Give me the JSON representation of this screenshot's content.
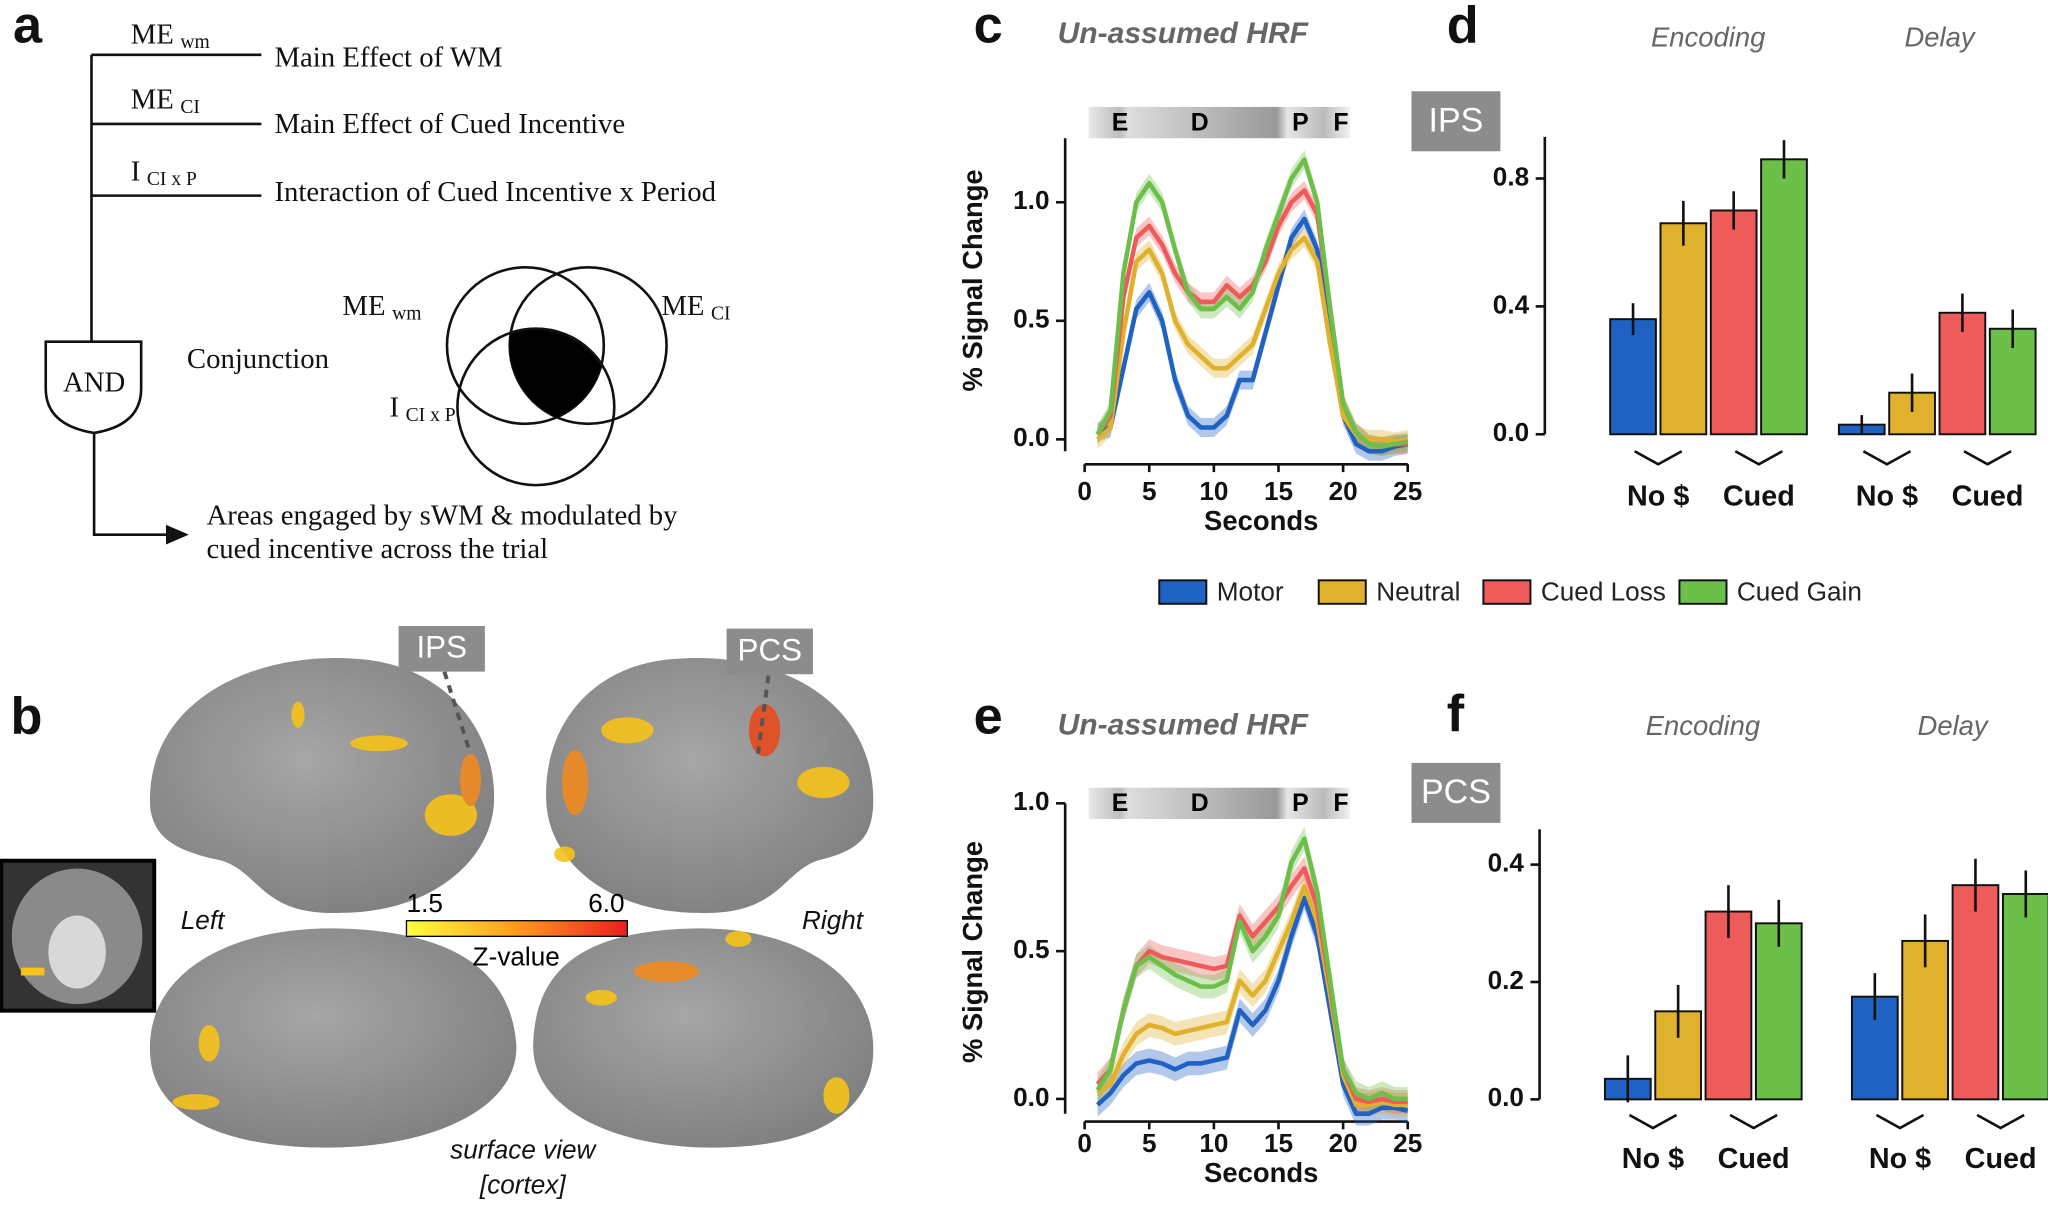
{
  "panel_a": {
    "letter": "a",
    "terms": [
      {
        "main": "ME",
        "sub": "wm",
        "label": "Main Effect of WM"
      },
      {
        "main": "ME",
        "sub": "CI",
        "label": "Main Effect of Cued Incentive"
      },
      {
        "main": "I",
        "sub": "CI x P",
        "label": "Interaction of Cued Incentive x Period"
      }
    ],
    "gate": "AND",
    "conjunction": "Conjunction",
    "result": [
      "Areas engaged by sWM & modulated by",
      "cued incentive across the trial"
    ]
  },
  "panel_b": {
    "letter": "b",
    "regions": [
      "IPS",
      "PCS"
    ],
    "hemispheres": [
      "Left",
      "Right"
    ],
    "colorbar": {
      "ticks": [
        1.5,
        {
          "value": 6,
          "label": "6.0"
        }
      ],
      "label": "Z-value"
    },
    "caption": [
      "surface view",
      "[cortex]"
    ]
  },
  "chart_data": [
    {
      "type": "line",
      "panel": "c",
      "title": "Un-assumed HRF",
      "region": "IPS",
      "periods": [
        "E",
        "D",
        "P",
        "F"
      ],
      "xlabel": "Seconds",
      "ylabel": "% Signal Change",
      "x": [
        1,
        2,
        3,
        4,
        5,
        6,
        7,
        8,
        9,
        10,
        11,
        12,
        13,
        14,
        15,
        16,
        17,
        18,
        19,
        20,
        21,
        22,
        23,
        24,
        25
      ],
      "xlim": [
        -1,
        26
      ],
      "xticks": [
        0,
        5,
        10,
        15,
        20,
        25
      ],
      "ylim": [
        -0.05,
        1.27
      ],
      "yticks": [
        {
          "value": 0,
          "label": "0.0"
        },
        0.5,
        {
          "value": 1,
          "label": "1.0"
        }
      ],
      "series": [
        {
          "name": "Motor",
          "color": "#1f62c4",
          "error": 0.04,
          "values": [
            0.03,
            0.05,
            0.3,
            0.55,
            0.62,
            0.5,
            0.25,
            0.1,
            0.05,
            0.05,
            0.1,
            0.25,
            0.25,
            0.45,
            0.65,
            0.85,
            0.93,
            0.8,
            0.45,
            0.1,
            -0.02,
            -0.05,
            -0.05,
            -0.03,
            -0.02
          ]
        },
        {
          "name": "Neutral",
          "color": "#e0b12c",
          "error": 0.04,
          "values": [
            0.0,
            0.05,
            0.45,
            0.75,
            0.8,
            0.7,
            0.5,
            0.4,
            0.35,
            0.3,
            0.3,
            0.35,
            0.4,
            0.55,
            0.7,
            0.8,
            0.85,
            0.75,
            0.4,
            0.1,
            0.02,
            0.0,
            0.0,
            -0.01,
            0.0
          ]
        },
        {
          "name": "Cued Loss",
          "color": "#ee5b5b",
          "error": 0.04,
          "values": [
            0.02,
            0.1,
            0.6,
            0.85,
            0.9,
            0.82,
            0.7,
            0.62,
            0.58,
            0.58,
            0.65,
            0.6,
            0.65,
            0.75,
            0.9,
            1.0,
            1.05,
            0.95,
            0.55,
            0.15,
            0.03,
            -0.02,
            -0.03,
            -0.02,
            -0.02
          ]
        },
        {
          "name": "Cued Gain",
          "color": "#6cc04a",
          "error": 0.04,
          "values": [
            0.02,
            0.12,
            0.7,
            1.0,
            1.08,
            1.0,
            0.8,
            0.62,
            0.55,
            0.55,
            0.6,
            0.55,
            0.62,
            0.8,
            0.95,
            1.1,
            1.18,
            1.0,
            0.55,
            0.15,
            0.03,
            -0.02,
            -0.03,
            -0.02,
            -0.01
          ]
        }
      ]
    },
    {
      "type": "bar",
      "panel": "d",
      "categories": [
        "Encoding",
        "Delay"
      ],
      "subgroups": [
        "No $",
        "Cued"
      ],
      "ylim": [
        0,
        0.93
      ],
      "yticks": [
        {
          "value": 0,
          "label": "0.0"
        },
        0.4,
        0.8
      ],
      "series": [
        {
          "name": "Motor",
          "color": "#1f62c4",
          "values": [
            0.36,
            0.03
          ],
          "errors": [
            0.05,
            0.03
          ]
        },
        {
          "name": "Neutral",
          "color": "#e0b12c",
          "values": [
            0.66,
            0.13
          ],
          "errors": [
            0.07,
            0.06
          ]
        },
        {
          "name": "Cued Loss",
          "color": "#ee5b5b",
          "values": [
            0.7,
            0.38
          ],
          "errors": [
            0.06,
            0.06
          ]
        },
        {
          "name": "Cued Gain",
          "color": "#6cc04a",
          "values": [
            0.86,
            0.33
          ],
          "errors": [
            0.06,
            0.06
          ]
        }
      ]
    },
    {
      "type": "line",
      "panel": "e",
      "title": "Un-assumed HRF",
      "region": "PCS",
      "periods": [
        "E",
        "D",
        "P",
        "F"
      ],
      "xlabel": "Seconds",
      "ylabel": "% Signal Change",
      "x": [
        1,
        2,
        3,
        4,
        5,
        6,
        7,
        8,
        9,
        10,
        11,
        12,
        13,
        14,
        15,
        16,
        17,
        18,
        19,
        20,
        21,
        22,
        23,
        24,
        25
      ],
      "xlim": [
        -1,
        26
      ],
      "xticks": [
        0,
        5,
        10,
        15,
        20,
        25
      ],
      "ylim": [
        -0.05,
        1.0
      ],
      "yticks": [
        {
          "value": 0,
          "label": "0.0"
        },
        0.5,
        {
          "value": 1,
          "label": "1.0"
        }
      ],
      "series": [
        {
          "name": "Motor",
          "color": "#1f62c4",
          "error": 0.04,
          "values": [
            -0.02,
            0.02,
            0.08,
            0.12,
            0.13,
            0.12,
            0.1,
            0.12,
            0.12,
            0.13,
            0.14,
            0.3,
            0.25,
            0.3,
            0.4,
            0.55,
            0.68,
            0.55,
            0.3,
            0.05,
            -0.05,
            -0.05,
            -0.03,
            -0.03,
            -0.04
          ]
        },
        {
          "name": "Neutral",
          "color": "#e0b12c",
          "error": 0.04,
          "values": [
            0.02,
            0.05,
            0.15,
            0.22,
            0.25,
            0.24,
            0.22,
            0.23,
            0.24,
            0.25,
            0.26,
            0.4,
            0.35,
            0.4,
            0.5,
            0.6,
            0.72,
            0.6,
            0.35,
            0.08,
            -0.02,
            -0.02,
            -0.01,
            -0.02,
            -0.02
          ]
        },
        {
          "name": "Cued Loss",
          "color": "#ee5b5b",
          "error": 0.04,
          "values": [
            0.05,
            0.1,
            0.3,
            0.45,
            0.5,
            0.48,
            0.47,
            0.46,
            0.45,
            0.44,
            0.45,
            0.62,
            0.55,
            0.6,
            0.65,
            0.72,
            0.78,
            0.65,
            0.38,
            0.1,
            0.0,
            -0.01,
            0.0,
            -0.01,
            -0.01
          ]
        },
        {
          "name": "Cued Gain",
          "color": "#6cc04a",
          "error": 0.04,
          "values": [
            0.03,
            0.1,
            0.3,
            0.45,
            0.48,
            0.45,
            0.42,
            0.4,
            0.38,
            0.38,
            0.4,
            0.6,
            0.5,
            0.55,
            0.62,
            0.8,
            0.88,
            0.7,
            0.4,
            0.1,
            0.02,
            0.0,
            0.02,
            0.0,
            0.0
          ]
        }
      ]
    },
    {
      "type": "bar",
      "panel": "f",
      "categories": [
        "Encoding",
        "Delay"
      ],
      "subgroups": [
        "No $",
        "Cued"
      ],
      "ylim": [
        0,
        0.46
      ],
      "yticks": [
        {
          "value": 0,
          "label": "0.0"
        },
        0.2,
        0.4
      ],
      "series": [
        {
          "name": "Motor",
          "color": "#1f62c4",
          "values": [
            0.035,
            0.175
          ],
          "errors": [
            0.04,
            0.04
          ]
        },
        {
          "name": "Neutral",
          "color": "#e0b12c",
          "values": [
            0.15,
            0.27
          ],
          "errors": [
            0.045,
            0.045
          ]
        },
        {
          "name": "Cued Loss",
          "color": "#ee5b5b",
          "values": [
            0.32,
            0.365
          ],
          "errors": [
            0.045,
            0.045
          ]
        },
        {
          "name": "Cued Gain",
          "color": "#6cc04a",
          "values": [
            0.3,
            0.35
          ],
          "errors": [
            0.04,
            0.04
          ]
        }
      ]
    }
  ]
}
